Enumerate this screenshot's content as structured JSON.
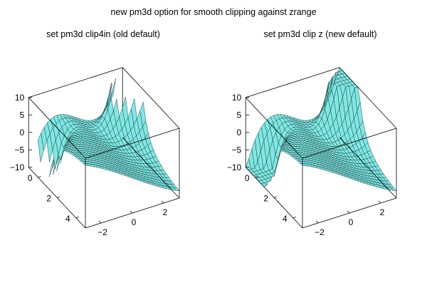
{
  "title": "new pm3d option for smooth clipping against zrange",
  "surface_color": "#7fe8e4",
  "mesh_color": "#1a3b3b",
  "chart_data": [
    {
      "type": "surface3d",
      "title": "set pm3d clip4in (old default)",
      "clipping": "clip4in",
      "zlim": [
        -10,
        10
      ],
      "xlim": [
        -3,
        3
      ],
      "ylim": [
        -1,
        5
      ],
      "z_ticks": [
        "10",
        "5",
        "0",
        "−5",
        "−10"
      ],
      "y_ticks": [
        "0",
        "2",
        "4"
      ],
      "x_ticks": [
        "−2",
        "0",
        "2"
      ],
      "grid": false
    },
    {
      "type": "surface3d",
      "title": "set pm3d clip z (new default)",
      "clipping": "clip z",
      "zlim": [
        -10,
        10
      ],
      "xlim": [
        -3,
        3
      ],
      "ylim": [
        -1,
        5
      ],
      "z_ticks": [
        "10",
        "5",
        "0",
        "−5",
        "−10"
      ],
      "y_ticks": [
        "0",
        "2",
        "4"
      ],
      "x_ticks": [
        "−2",
        "0",
        "2"
      ],
      "grid": false
    }
  ]
}
